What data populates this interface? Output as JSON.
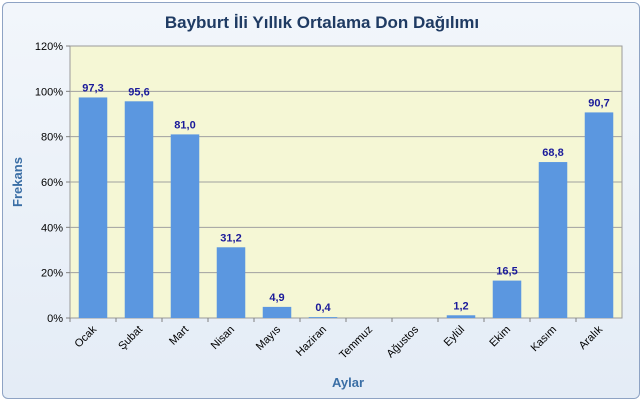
{
  "chart_data": {
    "type": "bar",
    "title": "Bayburt İli Yıllık Ortalama Don Dağılımı",
    "xlabel": "Aylar",
    "ylabel": "Frekans",
    "categories": [
      "Ocak",
      "Şubat",
      "Mart",
      "Nisan",
      "Mayıs",
      "Haziran",
      "Temmuz",
      "Ağustos",
      "Eylül",
      "Ekim",
      "Kasım",
      "Aralık"
    ],
    "values": [
      97.3,
      95.6,
      81.0,
      31.2,
      4.9,
      0.4,
      0,
      0,
      1.2,
      16.5,
      68.8,
      90.7
    ],
    "data_labels": [
      "97,3",
      "95,6",
      "81,0",
      "31,2",
      "4,9",
      "0,4",
      "",
      "",
      "1,2",
      "16,5",
      "68,8",
      "90,7"
    ],
    "ylim": [
      0,
      120
    ],
    "yticks": [
      "0%",
      "20%",
      "40%",
      "60%",
      "80%",
      "100%",
      "120%"
    ],
    "grid": true,
    "legend": "none",
    "colors": {
      "bar": "#5b97e0",
      "plot_bg": "#f5f7d5",
      "title": "#1f3b63",
      "axis_title": "#3a6ea5",
      "data_label": "#1a1a9a"
    }
  }
}
